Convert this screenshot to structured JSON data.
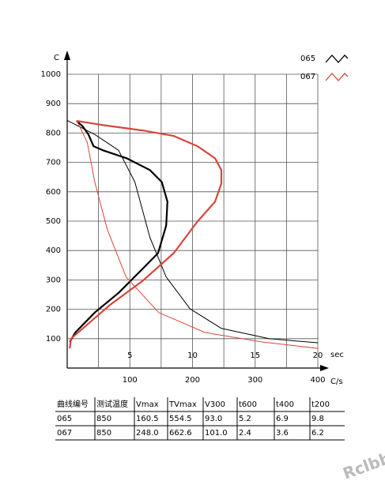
{
  "chart_data": {
    "type": "line",
    "y_label": "C",
    "x_label": "C/s",
    "x2_label": "sec",
    "ylim": [
      0,
      1000
    ],
    "yticks": [
      100,
      200,
      300,
      400,
      500,
      600,
      700,
      800,
      900,
      1000
    ],
    "xlim": [
      0,
      400
    ],
    "xticks": [
      100,
      200,
      300,
      400
    ],
    "x_minor_ticks": [
      50,
      150,
      250,
      350
    ],
    "x2lim": [
      0,
      20
    ],
    "x2ticks": [
      5,
      10,
      15,
      20
    ],
    "grid": true,
    "legend": "top-right",
    "series": [
      {
        "name": "065",
        "color": "#000000",
        "time": {
          "x": [
            0,
            2.2,
            4.1,
            5.4,
            6.6,
            7.9,
            9.8,
            12.3,
            16.1,
            20
          ],
          "values": [
            843,
            795,
            741,
            633,
            445,
            310,
            202,
            135,
            100,
            86
          ]
        },
        "rate": {
          "x": [
            15,
            25,
            34,
            42,
            57,
            95,
            132,
            151,
            160,
            158,
            145,
            120,
            82,
            44,
            13,
            4
          ],
          "values": [
            841,
            822,
            795,
            755,
            741,
            714,
            674,
            633,
            566,
            485,
            391,
            337,
            256,
            189,
            121,
            89
          ]
        }
      },
      {
        "name": "067",
        "color": "#d9463a",
        "time": {
          "x": [
            0.76,
            1.6,
            2.2,
            3.2,
            4.7,
            7.3,
            11,
            15.5,
            20
          ],
          "values": [
            843,
            768,
            633,
            472,
            310,
            189,
            121,
            89,
            67
          ]
        },
        "rate": {
          "x": [
            15,
            57,
            120,
            170,
            208,
            236,
            246,
            246,
            236,
            208,
            170,
            120,
            69,
            32,
            6,
            4
          ],
          "values": [
            841,
            827,
            809,
            790,
            755,
            714,
            674,
            628,
            566,
            499,
            391,
            296,
            216,
            148,
            100,
            67
          ]
        }
      }
    ]
  },
  "table": {
    "header": [
      "曲线编号",
      "测试温度",
      "Vmax",
      "TVmax",
      "V300",
      "t600",
      "t400",
      "t200"
    ],
    "rows": [
      [
        "065",
        "850",
        "160.5",
        "554.5",
        "93.0",
        "5.2",
        "6.9",
        "9.8"
      ],
      [
        "067",
        "850",
        "248.0",
        "662.6",
        "101.0",
        "2.4",
        "3.6",
        "6.2"
      ]
    ]
  },
  "watermark": "Rclbbs"
}
